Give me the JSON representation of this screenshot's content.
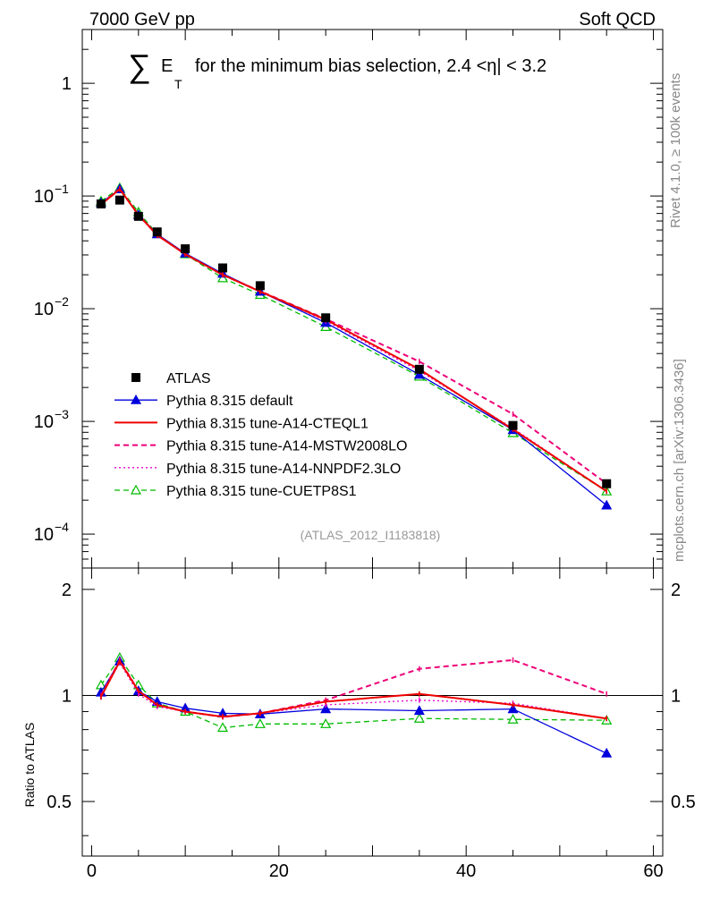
{
  "header": {
    "left": "7000 GeV pp",
    "right": "Soft QCD"
  },
  "title": {
    "sum_symbol": "∑",
    "e": "E",
    "sub": "T",
    "rest": "for the minimum bias selection, 2.4 <η| < 3.2"
  },
  "side": {
    "rivet": "Rivet 4.1.0, ≥ 100k events",
    "mcplots": "mcplots.cern.ch [arXiv:1306.3436]"
  },
  "watermark": "(ATLAS_2012_I1183818)",
  "ratio_ylabel": "Ratio to ATLAS",
  "colors": {
    "atlas": "#000000",
    "default": "#0000dd",
    "cteql1": "#ee0000",
    "mstw": "#ee0077",
    "nnpdf": "#ee00cc",
    "cuetp8s1": "#00bb00"
  },
  "chart_data": [
    {
      "type": "line",
      "panel": "main",
      "yscale": "log",
      "xlim": [
        -1,
        61
      ],
      "ylim": [
        5e-05,
        3
      ],
      "yticks": [
        {
          "value": 1,
          "base": "1",
          "exp": ""
        },
        {
          "value": 0.1,
          "base": "10",
          "exp": "−1"
        },
        {
          "value": 0.01,
          "base": "10",
          "exp": "−2"
        },
        {
          "value": 0.001,
          "base": "10",
          "exp": "−3"
        },
        {
          "value": 0.0001,
          "base": "10",
          "exp": "−4"
        }
      ],
      "x": [
        1,
        3,
        5,
        7,
        10,
        14,
        18,
        25,
        35,
        45,
        55
      ],
      "series": [
        {
          "name": "ATLAS",
          "key": "atlas",
          "style": "square",
          "values": [
            0.085,
            0.092,
            0.066,
            0.048,
            0.034,
            0.023,
            0.016,
            0.0083,
            0.0029,
            0.00092,
            0.00028
          ]
        },
        {
          "name": "Pythia 8.315 default",
          "key": "default",
          "style": "solid-triangle",
          "values": [
            0.087,
            0.115,
            0.068,
            0.046,
            0.031,
            0.0205,
            0.0142,
            0.0075,
            0.0026,
            0.00084,
            0.00018
          ]
        },
        {
          "name": "Pythia 8.315 tune-A14-CTEQL1",
          "key": "cteql1",
          "style": "solid",
          "values": [
            0.084,
            0.115,
            0.068,
            0.045,
            0.0305,
            0.02,
            0.0142,
            0.008,
            0.0029,
            0.00085,
            0.00024
          ]
        },
        {
          "name": "Pythia 8.315 tune-A14-MSTW2008LO",
          "key": "mstw",
          "style": "dashed",
          "values": [
            0.085,
            0.116,
            0.068,
            0.045,
            0.0305,
            0.02,
            0.0143,
            0.0081,
            0.0034,
            0.00116,
            0.00028
          ]
        },
        {
          "name": "Pythia 8.315 tune-A14-NNPDF2.3LO",
          "key": "nnpdf",
          "style": "dotted",
          "values": [
            0.084,
            0.115,
            0.067,
            0.0445,
            0.0305,
            0.02,
            0.0143,
            0.0078,
            0.0028,
            0.00087,
            0.00024
          ]
        },
        {
          "name": "Pythia 8.315 tune-CUETP8S1",
          "key": "cuetp8s1",
          "style": "dashed-open-triangle",
          "values": [
            0.09,
            0.118,
            0.072,
            0.046,
            0.0305,
            0.0187,
            0.0133,
            0.0069,
            0.0025,
            0.00079,
            0.00024
          ]
        }
      ]
    },
    {
      "type": "line",
      "panel": "ratio",
      "ylabel": "Ratio to ATLAS",
      "ylim": [
        0.35,
        2.3
      ],
      "yticks": [
        0.5,
        1,
        2
      ],
      "ytick_labels": [
        "0.5",
        "1",
        "2"
      ],
      "xlim": [
        -1,
        61
      ],
      "xticks": [
        0,
        20,
        40,
        60
      ],
      "xtick_labels": [
        "0",
        "20",
        "40",
        "60"
      ],
      "x": [
        1,
        3,
        5,
        7,
        10,
        14,
        18,
        25,
        35,
        45,
        55
      ],
      "series": [
        {
          "key": "default",
          "style": "solid-triangle",
          "values": [
            1.02,
            1.25,
            1.03,
            0.96,
            0.92,
            0.89,
            0.885,
            0.915,
            0.905,
            0.915,
            0.685
          ]
        },
        {
          "key": "cteql1",
          "style": "solid",
          "values": [
            0.99,
            1.25,
            1.03,
            0.94,
            0.9,
            0.87,
            0.89,
            0.96,
            1.01,
            0.94,
            0.86
          ]
        },
        {
          "key": "mstw",
          "style": "dashed",
          "values": [
            1.0,
            1.26,
            1.03,
            0.94,
            0.9,
            0.87,
            0.89,
            0.97,
            1.19,
            1.26,
            1.01
          ]
        },
        {
          "key": "nnpdf",
          "style": "dotted",
          "values": [
            0.99,
            1.24,
            1.01,
            0.93,
            0.9,
            0.87,
            0.89,
            0.94,
            0.97,
            0.95,
            0.86
          ]
        },
        {
          "key": "cuetp8s1",
          "style": "dashed-open-triangle",
          "values": [
            1.07,
            1.28,
            1.07,
            0.95,
            0.9,
            0.81,
            0.83,
            0.83,
            0.86,
            0.855,
            0.85
          ]
        }
      ]
    }
  ]
}
